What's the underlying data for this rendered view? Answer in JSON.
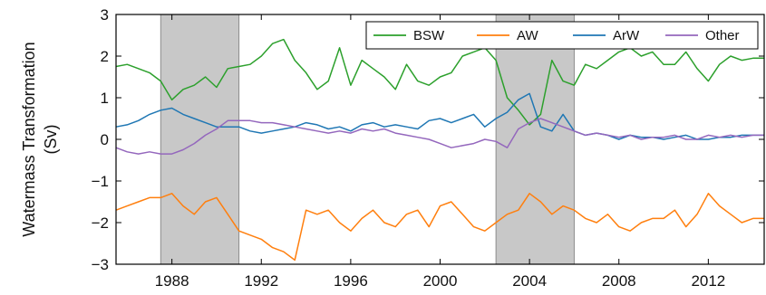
{
  "chart_data": {
    "type": "line",
    "ylabel": "Watermass Transformation\n(Sv)",
    "xlabel": "",
    "xlim": [
      1985.5,
      2014.5
    ],
    "ylim": [
      -3,
      3
    ],
    "x_ticks": [
      1988,
      1992,
      1996,
      2000,
      2004,
      2008,
      2012
    ],
    "y_ticks": [
      -3,
      -2,
      -1,
      0,
      1,
      2,
      3
    ],
    "shaded_periods": [
      [
        1987.5,
        1991.0
      ],
      [
        2002.5,
        2006.0
      ]
    ],
    "grid": false,
    "legend_position": "top-right",
    "x": [
      1985.5,
      1986.0,
      1986.5,
      1987.0,
      1987.5,
      1988.0,
      1988.5,
      1989.0,
      1989.5,
      1990.0,
      1990.5,
      1991.0,
      1991.5,
      1992.0,
      1992.5,
      1993.0,
      1993.5,
      1994.0,
      1994.5,
      1995.0,
      1995.5,
      1996.0,
      1996.5,
      1997.0,
      1997.5,
      1998.0,
      1998.5,
      1999.0,
      1999.5,
      2000.0,
      2000.5,
      2001.0,
      2001.5,
      2002.0,
      2002.5,
      2003.0,
      2003.5,
      2004.0,
      2004.5,
      2005.0,
      2005.5,
      2006.0,
      2006.5,
      2007.0,
      2007.5,
      2008.0,
      2008.5,
      2009.0,
      2009.5,
      2010.0,
      2010.5,
      2011.0,
      2011.5,
      2012.0,
      2012.5,
      2013.0,
      2013.5,
      2014.0,
      2014.5
    ],
    "series": [
      {
        "name": "BSW",
        "color": "#2ca02c",
        "values": [
          1.75,
          1.8,
          1.7,
          1.6,
          1.4,
          0.95,
          1.2,
          1.3,
          1.5,
          1.25,
          1.7,
          1.75,
          1.8,
          2.0,
          2.3,
          2.4,
          1.9,
          1.6,
          1.2,
          1.4,
          2.2,
          1.3,
          1.9,
          1.7,
          1.5,
          1.2,
          1.8,
          1.4,
          1.3,
          1.5,
          1.6,
          2.0,
          2.1,
          2.2,
          1.9,
          1.0,
          0.7,
          0.35,
          0.6,
          1.9,
          1.4,
          1.3,
          1.8,
          1.7,
          1.9,
          2.1,
          2.2,
          2.0,
          2.1,
          1.8,
          1.8,
          2.1,
          1.7,
          1.4,
          1.8,
          2.0,
          1.9,
          1.95,
          1.95
        ]
      },
      {
        "name": "AW",
        "color": "#ff7f0e",
        "values": [
          -1.7,
          -1.6,
          -1.5,
          -1.4,
          -1.4,
          -1.3,
          -1.6,
          -1.8,
          -1.5,
          -1.4,
          -1.8,
          -2.2,
          -2.3,
          -2.4,
          -2.6,
          -2.7,
          -2.9,
          -1.7,
          -1.8,
          -1.7,
          -2.0,
          -2.2,
          -1.9,
          -1.7,
          -2.0,
          -2.1,
          -1.8,
          -1.7,
          -2.1,
          -1.6,
          -1.5,
          -1.8,
          -2.1,
          -2.2,
          -2.0,
          -1.8,
          -1.7,
          -1.3,
          -1.5,
          -1.8,
          -1.6,
          -1.7,
          -1.9,
          -2.0,
          -1.8,
          -2.1,
          -2.2,
          -2.0,
          -1.9,
          -1.9,
          -1.7,
          -2.1,
          -1.8,
          -1.3,
          -1.6,
          -1.8,
          -2.0,
          -1.9,
          -1.9
        ]
      },
      {
        "name": "ArW",
        "color": "#1f77b4",
        "values": [
          0.3,
          0.35,
          0.45,
          0.6,
          0.7,
          0.75,
          0.6,
          0.5,
          0.4,
          0.3,
          0.3,
          0.3,
          0.2,
          0.15,
          0.2,
          0.25,
          0.3,
          0.4,
          0.35,
          0.25,
          0.3,
          0.2,
          0.35,
          0.4,
          0.3,
          0.35,
          0.3,
          0.25,
          0.45,
          0.5,
          0.4,
          0.5,
          0.6,
          0.3,
          0.5,
          0.65,
          0.95,
          1.1,
          0.3,
          0.2,
          0.6,
          0.2,
          0.1,
          0.15,
          0.1,
          0.0,
          0.1,
          0.05,
          0.05,
          0.0,
          0.05,
          0.1,
          0.0,
          0.0,
          0.05,
          0.05,
          0.1,
          0.1,
          0.1
        ]
      },
      {
        "name": "Other",
        "color": "#9467bd",
        "values": [
          -0.2,
          -0.3,
          -0.35,
          -0.3,
          -0.35,
          -0.35,
          -0.25,
          -0.1,
          0.1,
          0.25,
          0.45,
          0.45,
          0.45,
          0.4,
          0.4,
          0.35,
          0.3,
          0.25,
          0.2,
          0.15,
          0.2,
          0.15,
          0.25,
          0.2,
          0.25,
          0.15,
          0.1,
          0.05,
          0.0,
          -0.1,
          -0.2,
          -0.15,
          -0.1,
          0.0,
          -0.05,
          -0.2,
          0.25,
          0.4,
          0.5,
          0.4,
          0.3,
          0.2,
          0.1,
          0.15,
          0.1,
          0.05,
          0.1,
          0.0,
          0.05,
          0.05,
          0.1,
          0.0,
          0.0,
          0.1,
          0.05,
          0.1,
          0.05,
          0.1,
          0.1
        ]
      }
    ]
  }
}
